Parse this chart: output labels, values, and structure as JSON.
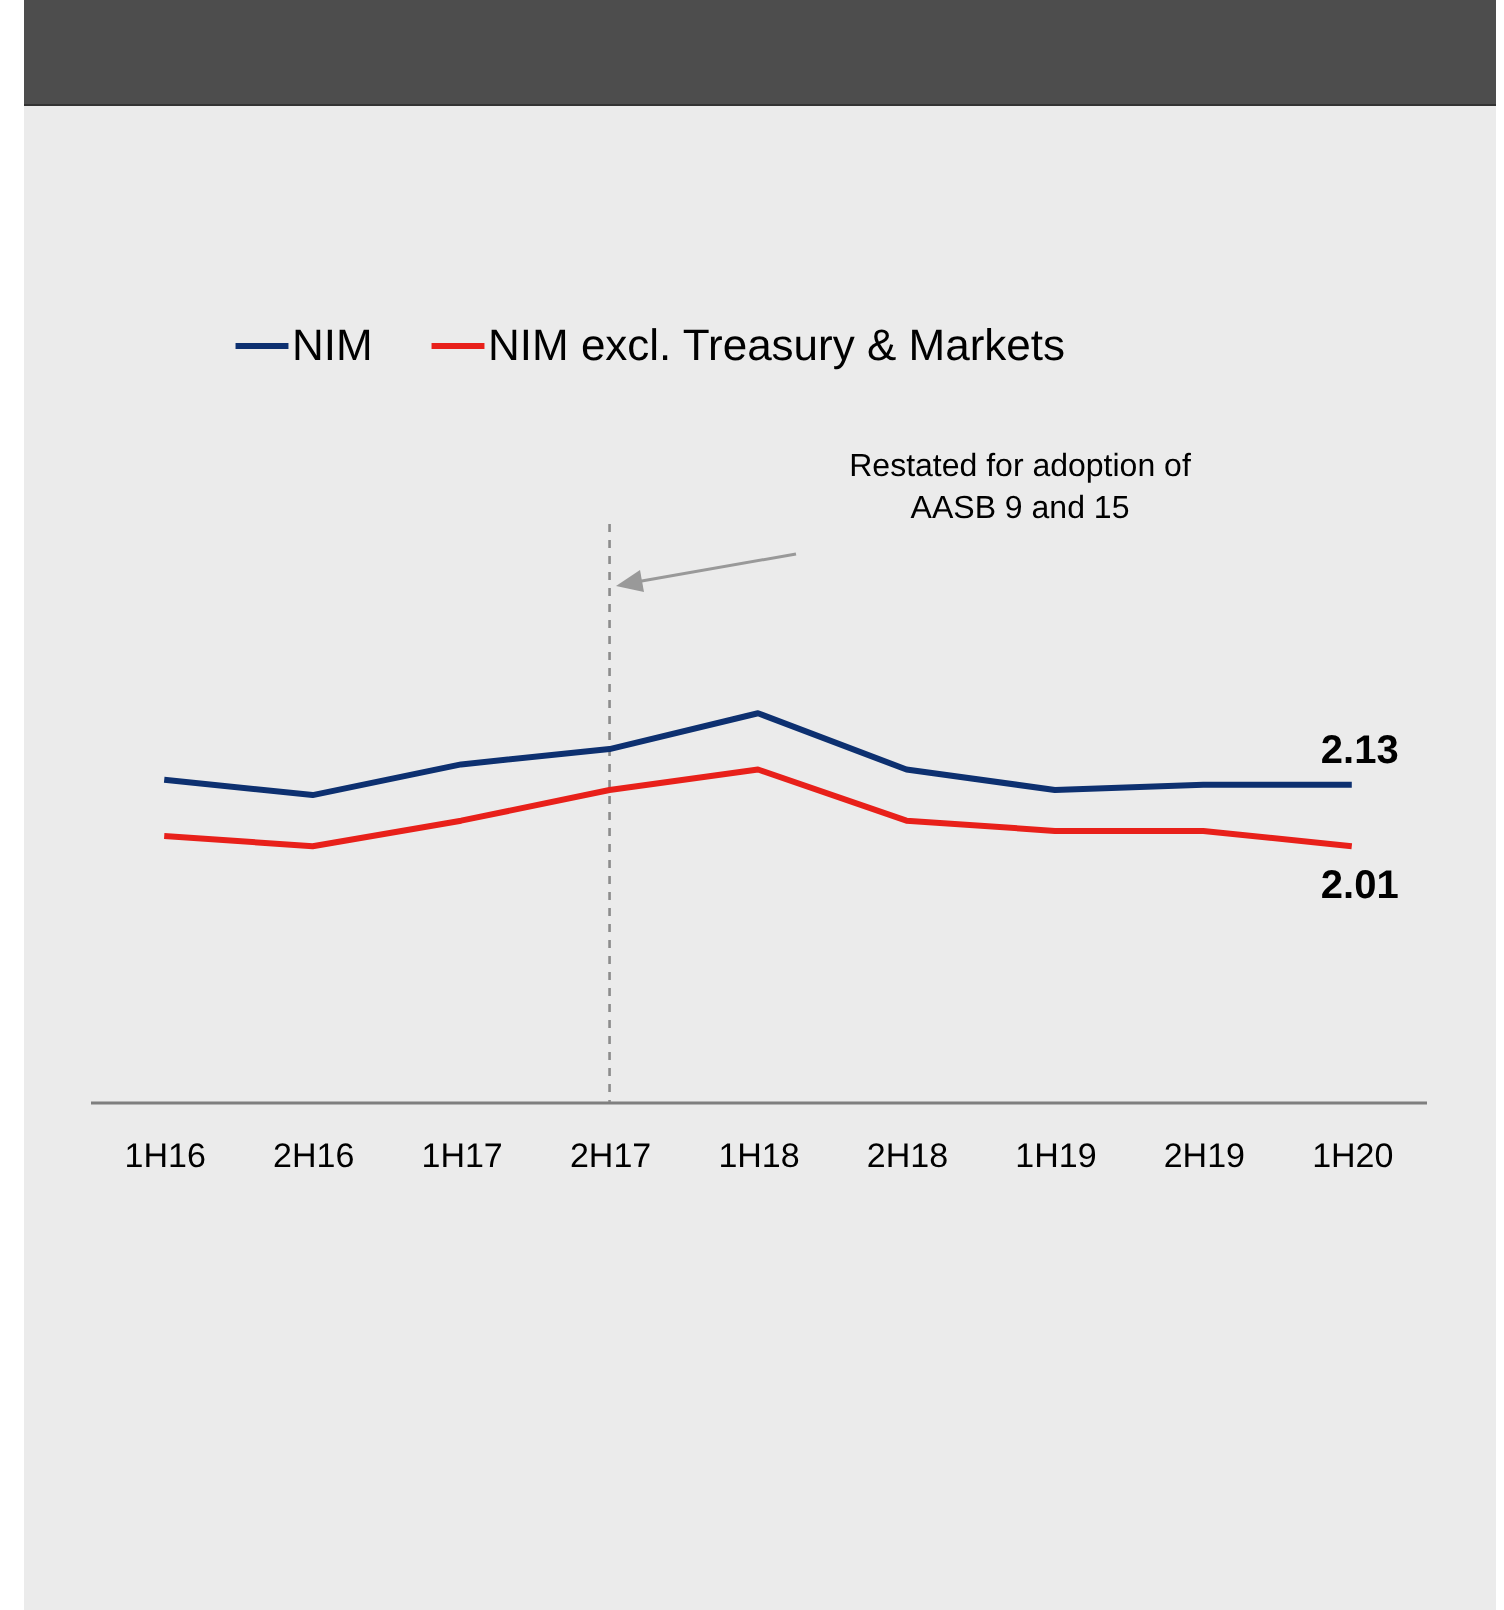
{
  "chart_data": {
    "type": "line",
    "categories": [
      "1H16",
      "2H16",
      "1H17",
      "2H17",
      "1H18",
      "2H18",
      "1H19",
      "2H19",
      "1H20"
    ],
    "series": [
      {
        "name": "NIM",
        "color": "#0d3070",
        "values": [
          2.14,
          2.11,
          2.17,
          2.2,
          2.27,
          2.16,
          2.12,
          2.13,
          2.13
        ],
        "value_labels": [
          null,
          null,
          null,
          null,
          null,
          null,
          null,
          null,
          "2.13"
        ]
      },
      {
        "name": "NIM excl. Treasury & Markets",
        "color": "#e8201a",
        "values": [
          2.03,
          2.01,
          2.06,
          2.12,
          2.16,
          2.06,
          2.04,
          2.04,
          2.01
        ],
        "value_labels": [
          null,
          null,
          null,
          null,
          null,
          null,
          null,
          null,
          "2.01"
        ]
      }
    ],
    "ylim": [
      1.51,
      2.64
    ],
    "grid": false,
    "annotations": [
      "Restated for adoption of AASB 9 and 15"
    ],
    "legend": "top",
    "marker": "none",
    "line_style": "solid",
    "ref_lines": [
      {
        "axis": "x",
        "value": "2H17",
        "color": "#8c8c8c",
        "line_style": "dashed"
      }
    ]
  }
}
